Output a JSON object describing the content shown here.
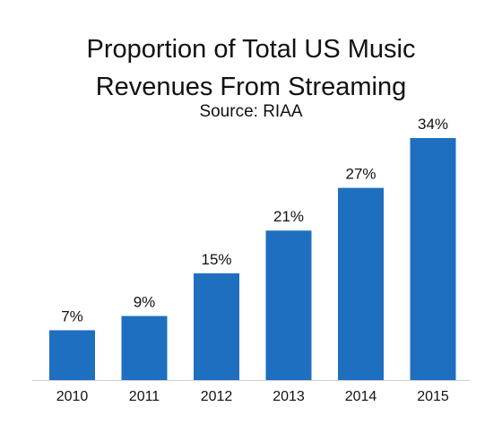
{
  "header": {
    "title_line1": "Proportion of Total US Music",
    "title_line2": "Revenues From Streaming",
    "subtitle": "Source: RIAA"
  },
  "colors": {
    "bar": "#1f6fc0",
    "axis": "#d0d0d0"
  },
  "chart_data": {
    "type": "bar",
    "title": "Proportion of Total US Music Revenues From Streaming",
    "subtitle": "Source: RIAA",
    "categories": [
      "2010",
      "2011",
      "2012",
      "2013",
      "2014",
      "2015"
    ],
    "values": [
      7,
      9,
      15,
      21,
      27,
      34
    ],
    "value_labels": [
      "7%",
      "9%",
      "15%",
      "21%",
      "27%",
      "34%"
    ],
    "xlabel": "",
    "ylabel": "",
    "ylim": [
      0,
      34
    ],
    "grid": false,
    "legend": "none"
  }
}
